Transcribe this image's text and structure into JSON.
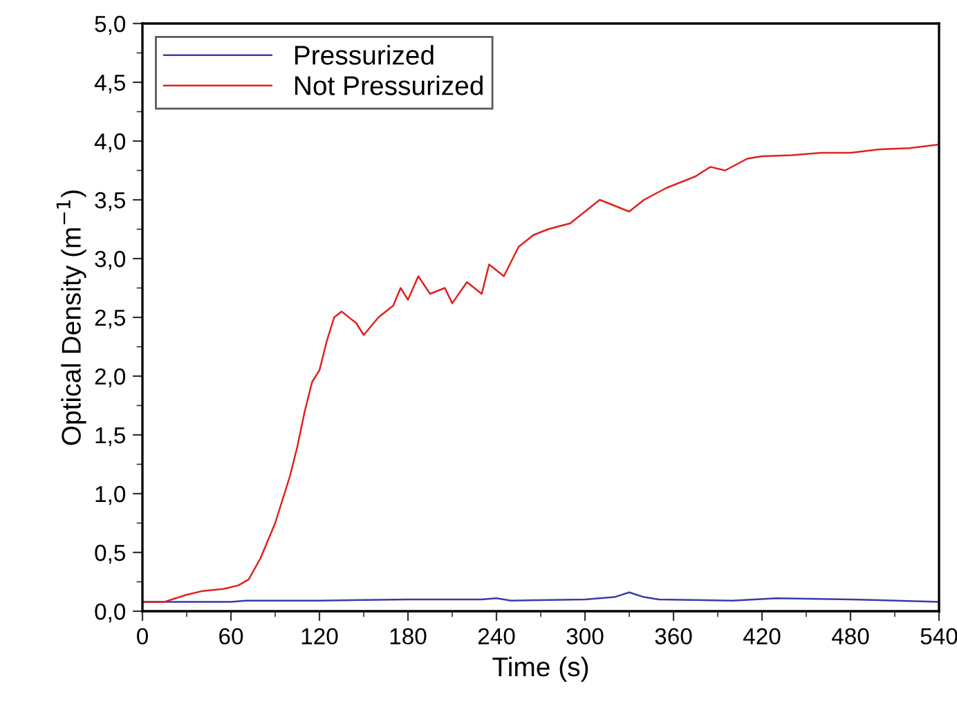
{
  "chart_data": {
    "type": "line",
    "xlabel": "Time (s)",
    "ylabel": "Optical Density (m$^{−1}$)",
    "xlim": [
      0,
      540
    ],
    "ylim": [
      0,
      5
    ],
    "xticks": [
      0,
      60,
      120,
      180,
      240,
      300,
      360,
      420,
      480,
      540
    ],
    "yticks": [
      {
        "value": 0,
        "label": "0,0"
      },
      {
        "value": 0.5,
        "label": "0,5"
      },
      {
        "value": 1,
        "label": "1,0"
      },
      {
        "value": 1.5,
        "label": "1,5"
      },
      {
        "value": 2,
        "label": "2,0"
      },
      {
        "value": 2.5,
        "label": "2,5"
      },
      {
        "value": 3,
        "label": "3,0"
      },
      {
        "value": 3.5,
        "label": "3,5"
      },
      {
        "value": 4,
        "label": "4,0"
      },
      {
        "value": 4.5,
        "label": "4,5"
      },
      {
        "value": 5,
        "label": "5,0"
      }
    ],
    "grid": false,
    "legend": "top left",
    "marker": "none",
    "line_style": "solid",
    "series": [
      {
        "name": "Pressurized",
        "color": "#3a3aa8",
        "x": [
          0,
          60,
          70,
          120,
          180,
          230,
          240,
          250,
          300,
          320,
          330,
          340,
          350,
          400,
          430,
          480,
          540
        ],
        "values": [
          0.08,
          0.08,
          0.09,
          0.09,
          0.1,
          0.1,
          0.11,
          0.09,
          0.1,
          0.12,
          0.16,
          0.12,
          0.1,
          0.09,
          0.11,
          0.1,
          0.08
        ]
      },
      {
        "name": "Not Pressurized",
        "color": "#e02020",
        "x": [
          0,
          15,
          30,
          40,
          55,
          65,
          72,
          80,
          90,
          100,
          105,
          110,
          115,
          120,
          125,
          130,
          135,
          145,
          150,
          160,
          170,
          175,
          180,
          187,
          195,
          205,
          210,
          220,
          230,
          235,
          245,
          255,
          265,
          275,
          290,
          300,
          310,
          320,
          330,
          340,
          355,
          365,
          375,
          385,
          395,
          410,
          420,
          440,
          460,
          480,
          500,
          520,
          540
        ],
        "values": [
          0.08,
          0.08,
          0.14,
          0.17,
          0.19,
          0.22,
          0.27,
          0.45,
          0.75,
          1.15,
          1.4,
          1.7,
          1.95,
          2.05,
          2.3,
          2.5,
          2.55,
          2.45,
          2.35,
          2.5,
          2.6,
          2.75,
          2.65,
          2.85,
          2.7,
          2.75,
          2.62,
          2.8,
          2.7,
          2.95,
          2.85,
          3.1,
          3.2,
          3.25,
          3.3,
          3.4,
          3.5,
          3.45,
          3.4,
          3.5,
          3.6,
          3.65,
          3.7,
          3.78,
          3.75,
          3.85,
          3.87,
          3.88,
          3.9,
          3.9,
          3.93,
          3.94,
          3.97
        ]
      }
    ]
  }
}
